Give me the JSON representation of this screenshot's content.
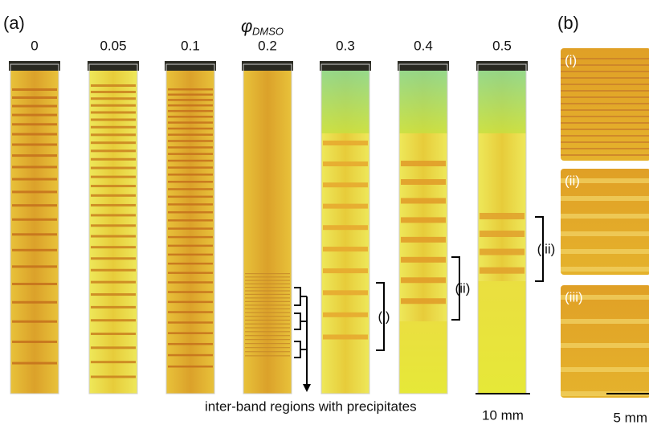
{
  "panel_a": {
    "label": "(a)",
    "axis_title": {
      "symbol": "φ",
      "subscript": "DMSO"
    },
    "tubes": [
      "0",
      "0.05",
      "0.1",
      "0.2",
      "0.3",
      "0.4",
      "0.5"
    ],
    "brackets": [
      "(i)",
      "(ii)",
      "(iii)"
    ],
    "annotation": "inter-band regions with precipitates",
    "scale_bar": "10 mm"
  },
  "panel_b": {
    "label": "(b)",
    "insets": [
      "(i)",
      "(ii)",
      "(iii)"
    ],
    "scale_bar": "5 mm"
  }
}
